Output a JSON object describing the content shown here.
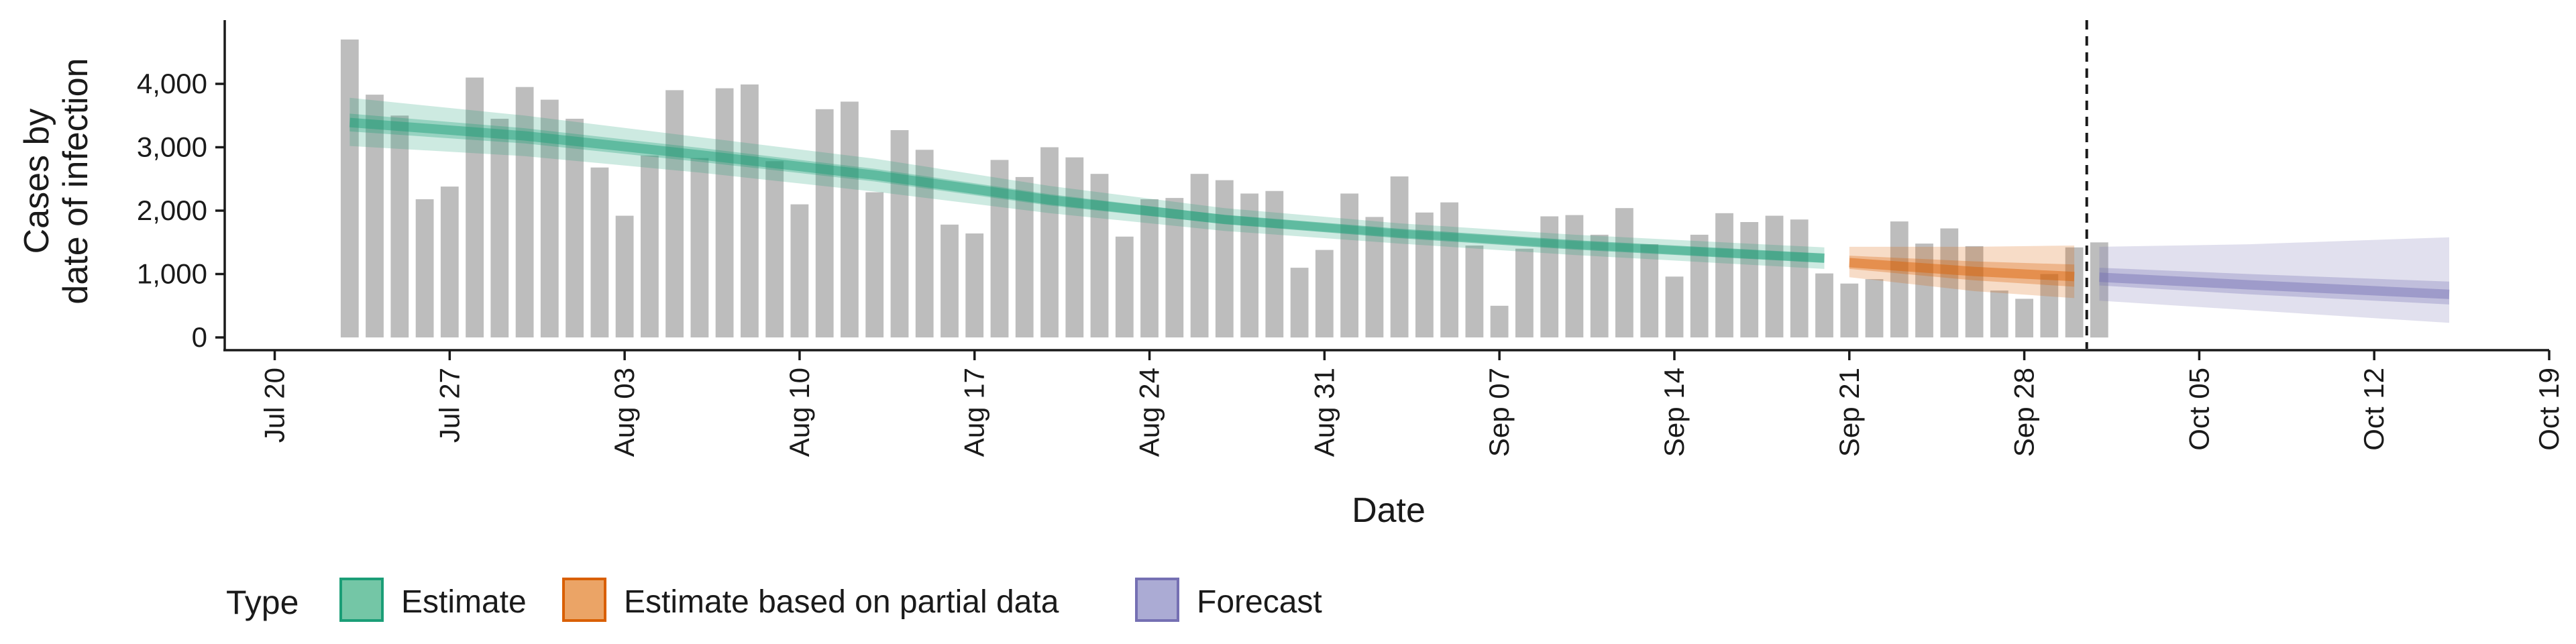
{
  "chart_data": {
    "type": "bar",
    "xlabel": "Date",
    "ylabel_lines": [
      "Cases by",
      "date of infection"
    ],
    "x_range": [
      "2020-07-18",
      "2020-10-19"
    ],
    "ylim": [
      0,
      5000
    ],
    "y_ticks": [
      {
        "value": 0,
        "label": "0"
      },
      {
        "value": 1000,
        "label": "1,000"
      },
      {
        "value": 2000,
        "label": "2,000"
      },
      {
        "value": 3000,
        "label": "3,000"
      },
      {
        "value": 4000,
        "label": "4,000"
      }
    ],
    "x_ticks": [
      {
        "date": "2020-07-20",
        "label": "Jul 20"
      },
      {
        "date": "2020-07-27",
        "label": "Jul 27"
      },
      {
        "date": "2020-08-03",
        "label": "Aug 03"
      },
      {
        "date": "2020-08-10",
        "label": "Aug 10"
      },
      {
        "date": "2020-08-17",
        "label": "Aug 17"
      },
      {
        "date": "2020-08-24",
        "label": "Aug 24"
      },
      {
        "date": "2020-08-31",
        "label": "Aug 31"
      },
      {
        "date": "2020-09-07",
        "label": "Sep 07"
      },
      {
        "date": "2020-09-14",
        "label": "Sep 14"
      },
      {
        "date": "2020-09-21",
        "label": "Sep 21"
      },
      {
        "date": "2020-09-28",
        "label": "Sep 28"
      },
      {
        "date": "2020-10-05",
        "label": "Oct 05"
      },
      {
        "date": "2020-10-12",
        "label": "Oct 12"
      },
      {
        "date": "2020-10-19",
        "label": "Oct 19"
      }
    ],
    "vline_date": "2020-09-30",
    "bars": {
      "start_date": "2020-07-23",
      "values": [
        4700,
        3830,
        3500,
        2180,
        2380,
        4100,
        3450,
        3950,
        3750,
        3450,
        2680,
        1920,
        2870,
        3900,
        2830,
        3930,
        3990,
        2780,
        2100,
        3600,
        3720,
        2290,
        3270,
        2960,
        1780,
        1640,
        2800,
        2530,
        3000,
        2840,
        2580,
        1590,
        2180,
        2200,
        2580,
        2480,
        2270,
        2310,
        1100,
        1380,
        2270,
        1900,
        2540,
        1970,
        2130,
        1450,
        500,
        1400,
        1910,
        1930,
        1620,
        2040,
        1470,
        960,
        1620,
        1960,
        1820,
        1920,
        1860,
        1010,
        850,
        920,
        1830,
        1480,
        1720,
        1440,
        740,
        610,
        1000,
        1420,
        1500
      ]
    },
    "series": [
      {
        "name": "Estimate",
        "color": "#1b9e77",
        "points": [
          {
            "date": "2020-07-23",
            "median": 3390,
            "inner": [
              3250,
              3530
            ],
            "outer": [
              3020,
              3780
            ]
          },
          {
            "date": "2020-07-30",
            "median": 3180,
            "inner": [
              3060,
              3300
            ],
            "outer": [
              2860,
              3500
            ]
          },
          {
            "date": "2020-08-06",
            "median": 2880,
            "inner": [
              2770,
              2990
            ],
            "outer": [
              2600,
              3160
            ]
          },
          {
            "date": "2020-08-13",
            "median": 2560,
            "inner": [
              2460,
              2660
            ],
            "outer": [
              2300,
              2820
            ]
          },
          {
            "date": "2020-08-20",
            "median": 2170,
            "inner": [
              2080,
              2260
            ],
            "outer": [
              1960,
              2390
            ]
          },
          {
            "date": "2020-08-27",
            "median": 1860,
            "inner": [
              1790,
              1930
            ],
            "outer": [
              1680,
              2040
            ]
          },
          {
            "date": "2020-09-03",
            "median": 1640,
            "inner": [
              1580,
              1700
            ],
            "outer": [
              1480,
              1800
            ]
          },
          {
            "date": "2020-09-10",
            "median": 1460,
            "inner": [
              1400,
              1520
            ],
            "outer": [
              1300,
              1620
            ]
          },
          {
            "date": "2020-09-20",
            "median": 1250,
            "inner": [
              1180,
              1320
            ],
            "outer": [
              1080,
              1420
            ]
          }
        ]
      },
      {
        "name": "Estimate based on partial data",
        "color": "#d95f02",
        "points": [
          {
            "date": "2020-09-21",
            "median": 1180,
            "inner": [
              1080,
              1290
            ],
            "outer": [
              950,
              1430
            ]
          },
          {
            "date": "2020-09-26",
            "median": 1040,
            "inner": [
              900,
              1200
            ],
            "outer": [
              730,
              1430
            ]
          },
          {
            "date": "2020-09-30",
            "median": 960,
            "inner": [
              800,
              1150
            ],
            "outer": [
              620,
              1450
            ]
          }
        ]
      },
      {
        "name": "Forecast",
        "color": "#7570b3",
        "points": [
          {
            "date": "2020-10-01",
            "median": 950,
            "inner": [
              820,
              1100
            ],
            "outer": [
              580,
              1430
            ]
          },
          {
            "date": "2020-10-07",
            "median": 830,
            "inner": [
              680,
              1000
            ],
            "outer": [
              430,
              1470
            ]
          },
          {
            "date": "2020-10-15",
            "median": 680,
            "inner": [
              520,
              880
            ],
            "outer": [
              230,
              1580
            ]
          }
        ]
      }
    ],
    "legend": {
      "title": "Type",
      "position": "bottom-left",
      "items": [
        {
          "label": "Estimate",
          "fill": "#74c6a6",
          "stroke": "#1b9e77"
        },
        {
          "label": "Estimate based on partial data",
          "fill": "#eba466",
          "stroke": "#d95f02"
        },
        {
          "label": "Forecast",
          "fill": "#ababd4",
          "stroke": "#7570b3"
        }
      ]
    }
  }
}
